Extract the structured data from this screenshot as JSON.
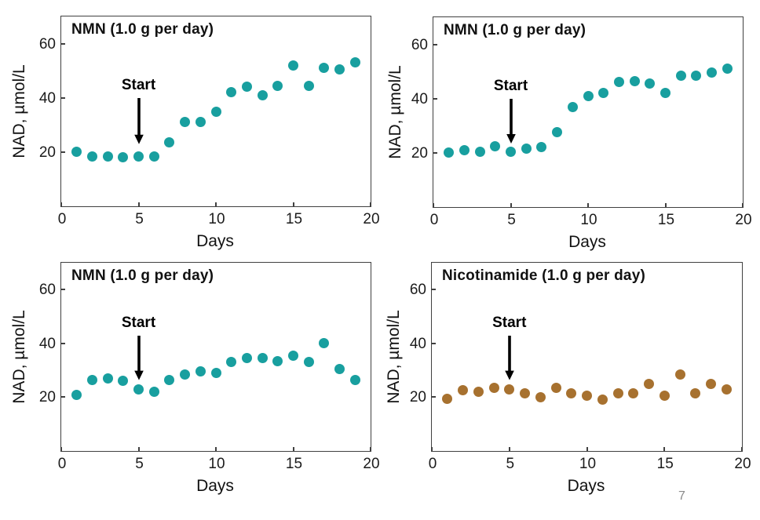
{
  "page": {
    "number": "7",
    "background": "#ffffff"
  },
  "colors": {
    "teal": "#189F9F",
    "brown": "#A7712F",
    "axis": "#404040",
    "text": "#1b1b1b",
    "page_number": "#8a8a8a",
    "arrow": "#000000"
  },
  "chart_data": [
    {
      "type": "scatter",
      "title": "NMN (1.0 g per day)",
      "xlabel": "Days",
      "ylabel": "NAD, µmol/L",
      "xlim": [
        0,
        20
      ],
      "ylim": [
        0,
        70
      ],
      "xticks": [
        0,
        5,
        10,
        15,
        20
      ],
      "yticks": [
        20,
        40,
        60
      ],
      "grid": false,
      "dot_color": "#189F9F",
      "annotation": {
        "label": "Start",
        "x": 5,
        "arrow_y_from": 40,
        "arrow_y_to": 23
      },
      "x": [
        1,
        2,
        3,
        4,
        5,
        6,
        7,
        8,
        9,
        10,
        11,
        12,
        13,
        14,
        15,
        16,
        17,
        18,
        19
      ],
      "y": [
        20,
        18.5,
        18.5,
        18,
        18.5,
        18.5,
        23.5,
        31,
        31,
        35,
        42,
        44,
        41,
        44.5,
        52,
        44.5,
        51,
        50.5,
        53
      ]
    },
    {
      "type": "scatter",
      "title": "NMN (1.0 g per day)",
      "xlabel": "Days",
      "ylabel": "NAD, µmol/L",
      "xlim": [
        0,
        20
      ],
      "ylim": [
        0,
        70
      ],
      "xticks": [
        0,
        5,
        10,
        15,
        20
      ],
      "yticks": [
        20,
        40,
        60
      ],
      "grid": false,
      "dot_color": "#189F9F",
      "annotation": {
        "label": "Start",
        "x": 5,
        "arrow_y_from": 40,
        "arrow_y_to": 23.5
      },
      "x": [
        1,
        2,
        3,
        4,
        5,
        6,
        7,
        8,
        9,
        10,
        11,
        12,
        13,
        14,
        15,
        16,
        17,
        18,
        19
      ],
      "y": [
        20,
        21,
        20.5,
        22.5,
        20.5,
        21.5,
        22,
        27.5,
        37,
        41,
        42,
        46,
        46.5,
        45.5,
        42,
        48.5,
        48.5,
        49.5,
        51
      ]
    },
    {
      "type": "scatter",
      "title": "NMN (1.0 g per day)",
      "xlabel": "Days",
      "ylabel": "NAD, µmol/L",
      "xlim": [
        0,
        20
      ],
      "ylim": [
        0,
        70
      ],
      "xticks": [
        0,
        5,
        10,
        15,
        20
      ],
      "yticks": [
        20,
        40,
        60
      ],
      "grid": false,
      "dot_color": "#189F9F",
      "annotation": {
        "label": "Start",
        "x": 5,
        "arrow_y_from": 43,
        "arrow_y_to": 26.5
      },
      "x": [
        1,
        2,
        3,
        4,
        5,
        6,
        7,
        8,
        9,
        10,
        11,
        12,
        13,
        14,
        15,
        16,
        17,
        18,
        19
      ],
      "y": [
        21,
        26.5,
        27,
        26,
        23,
        22,
        26.5,
        28.5,
        29.5,
        29,
        33,
        34.5,
        34.5,
        33.5,
        35.5,
        33,
        40,
        30.5,
        26.5
      ]
    },
    {
      "type": "scatter",
      "title": "Nicotinamide (1.0 g per day)",
      "xlabel": "Days",
      "ylabel": "NAD, µmol/L",
      "xlim": [
        0,
        20
      ],
      "ylim": [
        0,
        70
      ],
      "xticks": [
        0,
        5,
        10,
        15,
        20
      ],
      "yticks": [
        20,
        40,
        60
      ],
      "grid": false,
      "dot_color": "#A7712F",
      "annotation": {
        "label": "Start",
        "x": 5,
        "arrow_y_from": 43,
        "arrow_y_to": 26.5
      },
      "x": [
        1,
        2,
        3,
        4,
        5,
        6,
        7,
        8,
        9,
        10,
        11,
        12,
        13,
        14,
        15,
        16,
        17,
        18,
        19
      ],
      "y": [
        19.5,
        22.5,
        22,
        23.5,
        23,
        21.5,
        20,
        23.5,
        21.5,
        20.5,
        19,
        21.5,
        21.5,
        25,
        20.5,
        28.5,
        21.5,
        25,
        23
      ]
    }
  ]
}
